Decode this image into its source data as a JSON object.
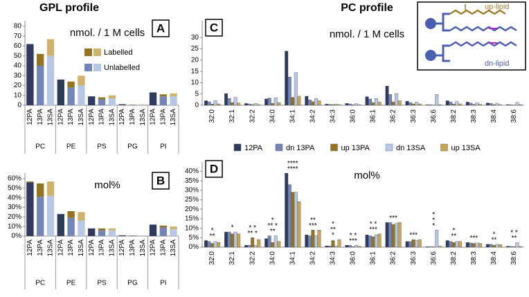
{
  "chart_data": [
    {
      "type": "stacked-bar",
      "panel": "A",
      "title": "GPL profile",
      "annotation": "nmol. / 1 M cells",
      "groups": [
        "PC",
        "PE",
        "PS",
        "PG",
        "PI"
      ],
      "subcategories": [
        "12PA",
        "13PA",
        "13SA"
      ],
      "ylim": [
        0,
        80
      ],
      "yticks": [
        0,
        10,
        20,
        30,
        40,
        50,
        60,
        70,
        80
      ],
      "series": [
        {
          "name": "Unlabelled",
          "colors": [
            "#2e3b5e",
            "#7185b8",
            "#b7c8e6"
          ],
          "values": [
            62,
            40,
            50,
            26,
            18,
            20,
            9,
            6,
            7,
            1,
            0.5,
            0.7,
            13,
            9,
            9
          ]
        },
        {
          "name": "Labelled",
          "colors": [
            "#94741f",
            "#94741f",
            "#cfb26b"
          ],
          "values": [
            0,
            12,
            17,
            0,
            6,
            10,
            0,
            2,
            3,
            0,
            0.2,
            0.3,
            0,
            2,
            3
          ]
        }
      ]
    },
    {
      "type": "stacked-bar",
      "panel": "B",
      "annotation": "mol%",
      "groups": [
        "PC",
        "PE",
        "PS",
        "PG",
        "PI"
      ],
      "subcategories": [
        "12PA",
        "13PA",
        "13SA"
      ],
      "ylim": [
        0,
        60
      ],
      "yticks": [
        {
          "value": 0,
          "label": "0%"
        },
        {
          "value": 10,
          "label": "10%"
        },
        {
          "value": 20,
          "label": "20%"
        },
        {
          "value": 30,
          "label": "30%"
        },
        {
          "value": 40,
          "label": "40%"
        },
        {
          "value": 50,
          "label": "50%"
        },
        {
          "value": 60,
          "label": "60%"
        }
      ],
      "series": [
        {
          "colors": [
            "#2e3b5e",
            "#7185b8",
            "#b7c8e6"
          ],
          "values": [
            56,
            41,
            42,
            23,
            19,
            16,
            8,
            6,
            6,
            0.8,
            0.5,
            0.6,
            12,
            9,
            7
          ]
        },
        {
          "colors": [
            "#94741f",
            "#94741f",
            "#cfb26b"
          ],
          "values": [
            1,
            14,
            15,
            0,
            7,
            9,
            0,
            2,
            2,
            0,
            0.2,
            0.2,
            0,
            2,
            3
          ]
        }
      ]
    },
    {
      "type": "bar",
      "panel": "C",
      "title": "PC profile",
      "annotation": "nmol. / 1 M cells",
      "categories": [
        "32:0",
        "32:1",
        "32:2",
        "34:0",
        "34:1",
        "34:2",
        "34:3",
        "36:0",
        "36:1",
        "36:2",
        "36:3",
        "36:6",
        "38:2",
        "38:3",
        "38:4",
        "38:6"
      ],
      "ylim": [
        0,
        35
      ],
      "yticks": [
        0,
        5,
        10,
        15,
        20,
        25,
        30
      ],
      "series": [
        {
          "name": "12PA",
          "color": "#2e3b5e",
          "values": [
            2,
            5.2,
            0.8,
            2.8,
            24,
            4,
            0.5,
            0.8,
            3.8,
            8.5,
            1.8,
            0.2,
            2,
            1.4,
            1,
            0.3
          ]
        },
        {
          "name": "dn 13PA",
          "color": "#7185b8",
          "values": [
            1.5,
            3,
            0.6,
            3.2,
            12.5,
            2.4,
            0.4,
            0.6,
            2.8,
            4.8,
            1.2,
            0.2,
            1.4,
            1,
            0.8,
            0.2
          ]
        },
        {
          "name": "up 13PA",
          "color": "#94741f",
          "values": [
            0.5,
            1.2,
            0.3,
            0.8,
            3.5,
            1.6,
            0.3,
            0.2,
            1.2,
            1.5,
            0.6,
            0.1,
            0.5,
            0.4,
            0.3,
            0.1
          ]
        },
        {
          "name": "dn 13SA",
          "color": "#b7c8e6",
          "values": [
            2,
            3.5,
            0.8,
            3.3,
            14.5,
            3,
            0.5,
            0.7,
            3,
            5.2,
            1.4,
            4.8,
            1.6,
            1.1,
            0.9,
            1.3
          ]
        },
        {
          "name": "up 13SA",
          "color": "#c9a552",
          "values": [
            0.6,
            1,
            0.3,
            1.2,
            4,
            2,
            0.3,
            0.2,
            1.4,
            2,
            0.6,
            0.3,
            0.6,
            0.4,
            0.3,
            0.3
          ]
        }
      ]
    },
    {
      "type": "bar",
      "panel": "D",
      "annotation": "mol%",
      "categories": [
        "32:0",
        "32:1",
        "32:2",
        "34:0",
        "34:1",
        "34:2",
        "34:3",
        "36:0",
        "36:1",
        "36:2",
        "36:3",
        "36:6",
        "38:2",
        "38:3",
        "38:4",
        "38:6"
      ],
      "ylim": [
        0,
        42
      ],
      "yticks": [
        {
          "value": 0,
          "label": "0%"
        },
        {
          "value": 5,
          "label": "5%"
        },
        {
          "value": 10,
          "label": "10%"
        },
        {
          "value": 15,
          "label": "15%"
        },
        {
          "value": 20,
          "label": "20%"
        },
        {
          "value": 25,
          "label": "25%"
        },
        {
          "value": 30,
          "label": "30%"
        },
        {
          "value": 35,
          "label": "35%"
        },
        {
          "value": 40,
          "label": "40%"
        }
      ],
      "series": [
        {
          "values": [
            3.5,
            8,
            1,
            4.5,
            39,
            6.5,
            0.7,
            1,
            6.5,
            13,
            3,
            0.3,
            3.5,
            2.5,
            1.5,
            0.5
          ]
        },
        {
          "values": [
            3,
            8,
            1,
            6,
            33,
            6,
            0.7,
            1,
            6,
            13,
            3,
            0.3,
            3,
            2.2,
            1.5,
            0.4
          ]
        },
        {
          "values": [
            2,
            7,
            5,
            2.5,
            29,
            9,
            3.5,
            0.3,
            5.5,
            12,
            4,
            0.2,
            2.5,
            2,
            1,
            0.3
          ]
        },
        {
          "values": [
            3,
            8,
            1,
            6,
            29,
            6,
            0.7,
            1,
            6.5,
            12.5,
            3.5,
            9,
            3,
            2.3,
            1.5,
            2.5
          ]
        },
        {
          "values": [
            2.5,
            7,
            4,
            3,
            24,
            9,
            4,
            0.5,
            7,
            13,
            4,
            0.5,
            3,
            2,
            1.4,
            0.4
          ]
        }
      ],
      "marks": [
        {
          "category": "32:0",
          "lines": [
            "*",
            "**"
          ]
        },
        {
          "category": "32:1",
          "lines": [
            "*"
          ]
        },
        {
          "category": "32:2",
          "lines": [
            "* *",
            "** *"
          ]
        },
        {
          "category": "34:0",
          "lines": [
            "*",
            "** *",
            "**"
          ]
        },
        {
          "category": "34:1",
          "lines": [
            "****",
            "****"
          ]
        },
        {
          "category": "34:2",
          "lines": [
            "**",
            "***"
          ]
        },
        {
          "category": "34:3",
          "lines": [
            "*",
            "**",
            "*"
          ]
        },
        {
          "category": "36:0",
          "lines": [
            "* *",
            "***"
          ]
        },
        {
          "category": "36:1",
          "lines": [
            "* *",
            "***"
          ]
        },
        {
          "category": "36:2",
          "lines": [
            "***"
          ]
        },
        {
          "category": "36:3",
          "lines": [
            "***"
          ]
        },
        {
          "category": "36:6",
          "lines": [
            "*",
            "*",
            "*"
          ]
        },
        {
          "category": "38:2",
          "lines": [
            "*",
            "**"
          ]
        },
        {
          "category": "38:3",
          "lines": [
            "***"
          ]
        },
        {
          "category": "38:4",
          "lines": [
            "*",
            "**"
          ]
        },
        {
          "category": "38:6",
          "lines": [
            "* *",
            "**"
          ]
        }
      ]
    }
  ],
  "inset": {
    "up_label": "up-lipid",
    "dn_label": "dn-lipid"
  }
}
